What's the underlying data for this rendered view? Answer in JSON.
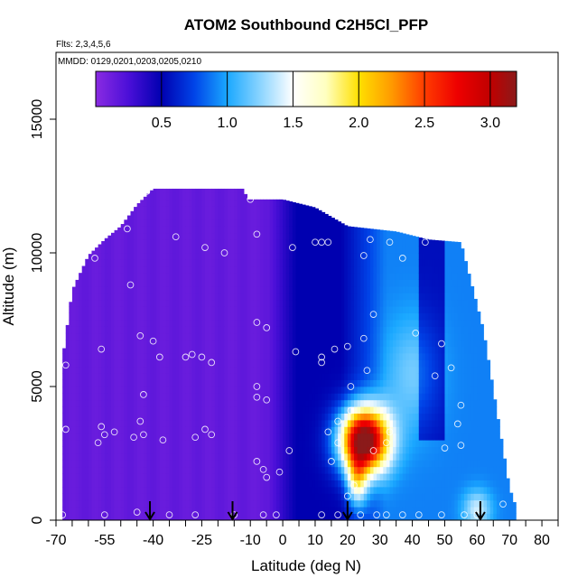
{
  "chart_data": {
    "type": "heatmap",
    "title": "ATOM2 Southbound C2H5Cl_PFP",
    "subtitle": "Flts: 2,3,4,5,6",
    "annotation": "MMDD: 0129,0201,0203,0205,0210",
    "xlabel": "Latitude (deg N)",
    "ylabel": "Altitude (m)",
    "xlim": [
      -70,
      85
    ],
    "ylim": [
      0,
      17500
    ],
    "x_ticks": [
      -70,
      -55,
      -40,
      -25,
      -10,
      0,
      10,
      20,
      30,
      40,
      50,
      60,
      70,
      80
    ],
    "x_tick_labels": [
      "-70",
      "-55",
      "-40",
      "-25",
      "-10",
      "0",
      "10",
      "20",
      "30",
      "40",
      "50",
      "60",
      "70",
      "80"
    ],
    "x_minor_ticks": [
      -65,
      -60,
      -50,
      -45,
      -35,
      -30,
      -20,
      -15,
      -5,
      5,
      15,
      25,
      35,
      45,
      55,
      65,
      75,
      85
    ],
    "y_ticks": [
      0,
      5000,
      10000,
      15000
    ],
    "y_tick_labels": [
      "0",
      "5000",
      "10000",
      "15000"
    ],
    "colorbar": {
      "range": [
        0.0,
        3.2
      ],
      "ticks": [
        0.5,
        1.0,
        1.5,
        2.0,
        2.5,
        3.0
      ],
      "tick_labels": [
        "0.5",
        "1.0",
        "1.5",
        "2.0",
        "2.5",
        "3.0"
      ],
      "color_stops": [
        {
          "value": 0.0,
          "color": "#8a2be2"
        },
        {
          "value": 0.25,
          "color": "#4b0fd8"
        },
        {
          "value": 0.5,
          "color": "#0000b0"
        },
        {
          "value": 0.75,
          "color": "#0044e8"
        },
        {
          "value": 1.0,
          "color": "#1aa8ff"
        },
        {
          "value": 1.25,
          "color": "#8ad4ff"
        },
        {
          "value": 1.5,
          "color": "#ffffff"
        },
        {
          "value": 1.75,
          "color": "#ffffc0"
        },
        {
          "value": 2.0,
          "color": "#ffe000"
        },
        {
          "value": 2.25,
          "color": "#ff9a00"
        },
        {
          "value": 2.5,
          "color": "#ff3c00"
        },
        {
          "value": 2.75,
          "color": "#ee0000"
        },
        {
          "value": 3.0,
          "color": "#c00000"
        },
        {
          "value": 3.2,
          "color": "#8b1a1a"
        }
      ]
    },
    "field_model": {
      "regions": [
        {
          "name": "southern-background",
          "lat": [
            -68,
            -5
          ],
          "value": 0.15
        },
        {
          "name": "tropical-core",
          "lat": [
            -5,
            18
          ],
          "value": 0.5
        },
        {
          "name": "northern-band",
          "lat": [
            18,
            72
          ],
          "value": 0.9
        },
        {
          "name": "plume-peak",
          "lat": 25,
          "alt": 3000,
          "value": 3.1
        }
      ]
    },
    "coverage_profile": [
      {
        "lat": -68,
        "top_alt": 6000
      },
      {
        "lat": -65,
        "top_alt": 8600
      },
      {
        "lat": -60,
        "top_alt": 9900
      },
      {
        "lat": -55,
        "top_alt": 10500
      },
      {
        "lat": -50,
        "top_alt": 11000
      },
      {
        "lat": -45,
        "top_alt": 11800
      },
      {
        "lat": -40,
        "top_alt": 12400
      },
      {
        "lat": -30,
        "top_alt": 12400
      },
      {
        "lat": -20,
        "top_alt": 12400
      },
      {
        "lat": -12,
        "top_alt": 12400
      },
      {
        "lat": -11,
        "top_alt": 12000
      },
      {
        "lat": 0,
        "top_alt": 12000
      },
      {
        "lat": 10,
        "top_alt": 11700
      },
      {
        "lat": 20,
        "top_alt": 11000
      },
      {
        "lat": 35,
        "top_alt": 10800
      },
      {
        "lat": 45,
        "top_alt": 10500
      },
      {
        "lat": 55,
        "top_alt": 10400
      },
      {
        "lat": 62,
        "top_alt": 7100
      },
      {
        "lat": 70,
        "top_alt": 1200
      },
      {
        "lat": 72,
        "top_alt": 500
      }
    ],
    "sample_points": [
      [
        -67,
        5800
      ],
      [
        -67,
        3400
      ],
      [
        -68,
        200
      ],
      [
        -58,
        9800
      ],
      [
        -56,
        6400
      ],
      [
        -56,
        3500
      ],
      [
        -57,
        2900
      ],
      [
        -55,
        3200
      ],
      [
        -52,
        3300
      ],
      [
        -55,
        200
      ],
      [
        -48,
        10900
      ],
      [
        -47,
        8800
      ],
      [
        -44,
        6900
      ],
      [
        -43,
        4700
      ],
      [
        -44,
        3700
      ],
      [
        -43,
        3200
      ],
      [
        -46,
        3100
      ],
      [
        -45,
        300
      ],
      [
        -40,
        6700
      ],
      [
        -38,
        6100
      ],
      [
        -37,
        3000
      ],
      [
        -33,
        10600
      ],
      [
        -30,
        6100
      ],
      [
        -28,
        6200
      ],
      [
        -25,
        6100
      ],
      [
        -22,
        5900
      ],
      [
        -24,
        3400
      ],
      [
        -22,
        3200
      ],
      [
        -27,
        3100
      ],
      [
        -27,
        200
      ],
      [
        -35,
        200
      ],
      [
        -18,
        10000
      ],
      [
        -15,
        200
      ],
      [
        -10,
        12000
      ],
      [
        -8,
        10700
      ],
      [
        -5,
        7200
      ],
      [
        -8,
        7400
      ],
      [
        -8,
        5000
      ],
      [
        -8,
        4600
      ],
      [
        -5,
        4500
      ],
      [
        -8,
        2200
      ],
      [
        -6,
        1900
      ],
      [
        -5,
        1600
      ],
      [
        -2,
        200
      ],
      [
        -6,
        200
      ],
      [
        3,
        10200
      ],
      [
        4,
        6300
      ],
      [
        2,
        2600
      ],
      [
        -1,
        1800
      ],
      [
        10,
        10400
      ],
      [
        12,
        10400
      ],
      [
        14,
        10400
      ],
      [
        12,
        6100
      ],
      [
        12,
        5900
      ],
      [
        16,
        6400
      ],
      [
        20,
        6500
      ],
      [
        21,
        5000
      ],
      [
        26,
        5600
      ],
      [
        25,
        6800
      ],
      [
        28,
        7700
      ],
      [
        25,
        9900
      ],
      [
        27,
        10500
      ],
      [
        33,
        10400
      ],
      [
        37,
        9800
      ],
      [
        44,
        10400
      ],
      [
        41,
        7000
      ],
      [
        49,
        6600
      ],
      [
        47,
        5400
      ],
      [
        52,
        5700
      ],
      [
        54,
        3600
      ],
      [
        55,
        2800
      ],
      [
        50,
        2700
      ],
      [
        55,
        4300
      ],
      [
        21,
        4100
      ],
      [
        17,
        3700
      ],
      [
        17,
        2900
      ],
      [
        15,
        2200
      ],
      [
        14,
        3300
      ],
      [
        28,
        2600
      ],
      [
        33,
        3300
      ],
      [
        32,
        2900
      ],
      [
        22,
        1300
      ],
      [
        20,
        900
      ],
      [
        17,
        200
      ],
      [
        12,
        200
      ],
      [
        24,
        200
      ],
      [
        29,
        200
      ],
      [
        32,
        200
      ],
      [
        37,
        200
      ],
      [
        42,
        200
      ],
      [
        49,
        200
      ],
      [
        56,
        200
      ],
      [
        60,
        200
      ],
      [
        68,
        600
      ],
      [
        -42,
        12300
      ],
      [
        -24,
        10200
      ]
    ],
    "flight_markers_lat": [
      -41,
      -15.5,
      20,
      61
    ]
  }
}
